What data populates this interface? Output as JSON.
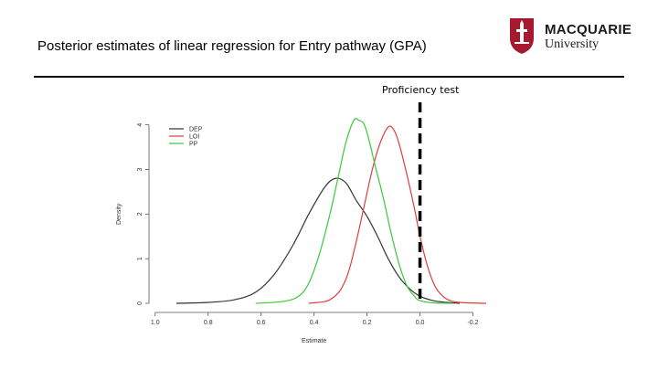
{
  "slide": {
    "title": "Posterior estimates of linear regression for Entry pathway (GPA)",
    "annotation": "Proficiency test"
  },
  "logo": {
    "line1": "MACQUARIE",
    "line2": "University",
    "icon": "macquarie-crest-icon",
    "color": "#a6192e"
  },
  "colors": {
    "DEP": "#333333",
    "LOI": "#e03c3c",
    "PP": "#3cc83c",
    "annotation_line": "#000000"
  },
  "chart_data": {
    "type": "line",
    "title": "",
    "xlabel": "Estimate",
    "ylabel": "Density",
    "x_reversed": true,
    "xlim": [
      -0.25,
      1.02
    ],
    "ylim": [
      0,
      4.3
    ],
    "xticks": [
      1.0,
      0.8,
      0.6,
      0.4,
      0.2,
      0.0,
      -0.2
    ],
    "xtick_labels": [
      "1.0",
      "0.8",
      "0.6",
      "0.4",
      "0.2",
      "0.0",
      "-0.2"
    ],
    "yticks": [
      0,
      1,
      2,
      3,
      4
    ],
    "ytick_labels": [
      "0",
      "1",
      "2",
      "3",
      "4"
    ],
    "legend_position": "top-left",
    "vline": {
      "x": 0.0,
      "label": "Proficiency test",
      "style": "dashed"
    },
    "series": [
      {
        "name": "DEP",
        "color": "#333333",
        "x": [
          0.92,
          0.8,
          0.7,
          0.62,
          0.55,
          0.48,
          0.42,
          0.36,
          0.32,
          0.28,
          0.24,
          0.2,
          0.16,
          0.12,
          0.08,
          0.04,
          0.0,
          -0.05,
          -0.1,
          -0.15
        ],
        "y": [
          0.0,
          0.02,
          0.08,
          0.25,
          0.65,
          1.3,
          2.0,
          2.6,
          2.8,
          2.7,
          2.3,
          1.95,
          1.5,
          1.0,
          0.6,
          0.33,
          0.16,
          0.06,
          0.02,
          0.0
        ]
      },
      {
        "name": "LOI",
        "color": "#e03c3c",
        "x": [
          0.42,
          0.36,
          0.33,
          0.3,
          0.27,
          0.24,
          0.21,
          0.18,
          0.15,
          0.12,
          0.1,
          0.08,
          0.05,
          0.02,
          0.0,
          -0.03,
          -0.06,
          -0.1,
          -0.15,
          -0.25
        ],
        "y": [
          0.0,
          0.04,
          0.12,
          0.3,
          0.7,
          1.4,
          2.2,
          3.0,
          3.6,
          3.95,
          3.9,
          3.6,
          2.9,
          2.1,
          1.5,
          0.8,
          0.35,
          0.1,
          0.02,
          0.0
        ]
      },
      {
        "name": "PP",
        "color": "#3cc83c",
        "x": [
          0.62,
          0.52,
          0.46,
          0.42,
          0.38,
          0.34,
          0.31,
          0.28,
          0.25,
          0.23,
          0.21,
          0.19,
          0.17,
          0.14,
          0.11,
          0.08,
          0.05,
          0.02,
          0.0,
          -0.05,
          -0.12
        ],
        "y": [
          0.0,
          0.04,
          0.15,
          0.45,
          1.1,
          2.0,
          2.8,
          3.6,
          4.1,
          4.1,
          4.0,
          3.6,
          3.1,
          2.4,
          1.6,
          0.9,
          0.4,
          0.15,
          0.06,
          0.01,
          0.0
        ]
      }
    ]
  }
}
